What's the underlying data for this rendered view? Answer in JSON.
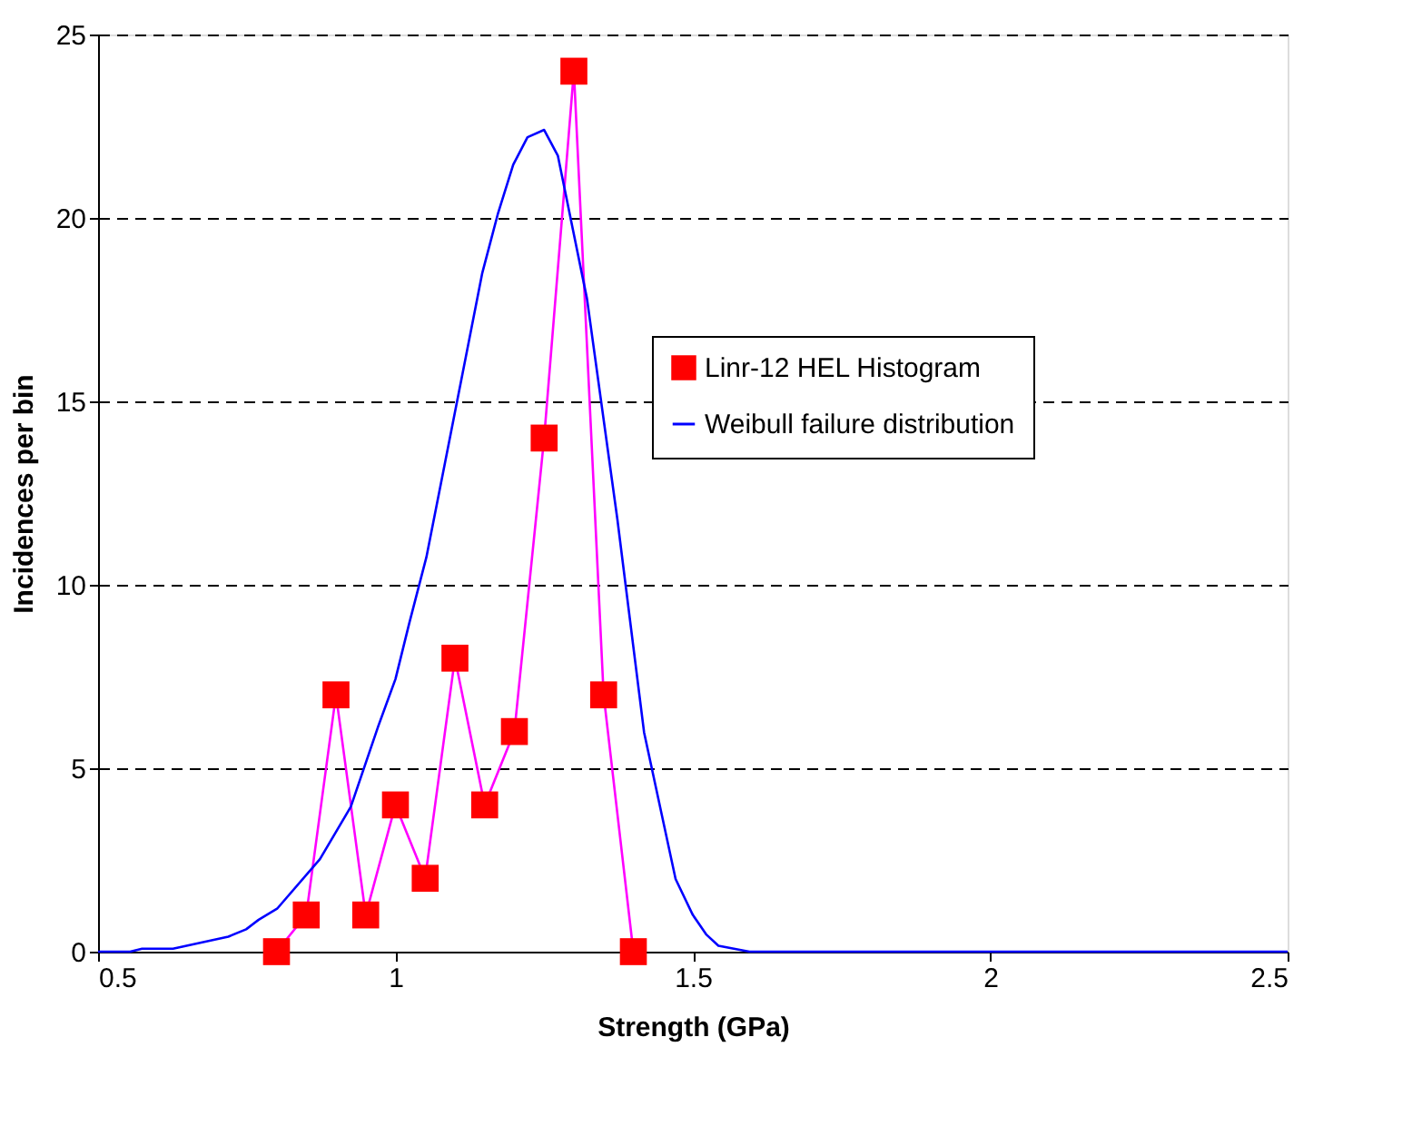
{
  "chart_data": {
    "type": "line",
    "xlabel": "Strength (GPa)",
    "ylabel": "Incidences per bin",
    "xlim": [
      0.5,
      2.5
    ],
    "xticks": [
      0.5,
      1,
      1.5,
      2,
      2.5
    ],
    "ylim": [
      0,
      25
    ],
    "yticks": [
      0,
      5,
      10,
      15,
      20,
      25
    ],
    "grid": "y",
    "legend": "right",
    "line_style": "solid",
    "series": [
      {
        "name": "Linr-12 HEL Histogram",
        "color": "#ff0000",
        "marker": "square",
        "x": [
          0.8,
          0.85,
          0.9,
          0.95,
          1.0,
          1.05,
          1.1,
          1.15,
          1.2,
          1.25,
          1.3,
          1.35,
          1.4
        ],
        "values": [
          0,
          1,
          7,
          1,
          4,
          2,
          8,
          4,
          6,
          14,
          24,
          7,
          0
        ]
      },
      {
        "name": "Weibull failure distribution",
        "color": "#0000ff",
        "marker": "none",
        "x": [
          0.5,
          0.554,
          0.574,
          0.626,
          0.719,
          0.749,
          0.77,
          0.801,
          0.873,
          0.925,
          0.971,
          1.0,
          1.023,
          1.052,
          1.1,
          1.146,
          1.172,
          1.198,
          1.222,
          1.25,
          1.273,
          1.322,
          1.373,
          1.418,
          1.471,
          1.5,
          1.523,
          1.543,
          1.595,
          2.5
        ],
        "values": [
          0,
          0,
          0.08,
          0.08,
          0.41,
          0.61,
          0.87,
          1.17,
          2.52,
          3.95,
          6.14,
          7.43,
          8.94,
          10.75,
          14.7,
          18.5,
          20.1,
          21.45,
          22.2,
          22.4,
          21.7,
          17.8,
          11.8,
          5.98,
          1.98,
          1.0,
          0.46,
          0.16,
          0,
          0
        ]
      }
    ]
  }
}
